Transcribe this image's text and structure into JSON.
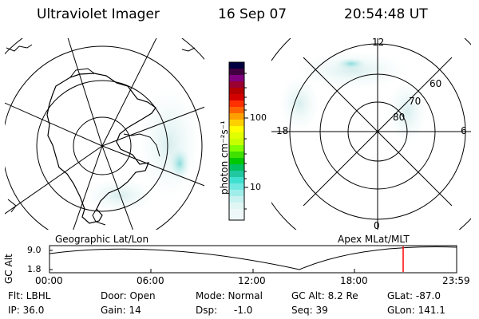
{
  "header": {
    "instrument": "Ultraviolet Imager",
    "date": "16 Sep 07",
    "time": "20:54:48 UT"
  },
  "left_panel": {
    "label": "Geographic Lat/Lon"
  },
  "right_panel": {
    "label": "Apex MLat/MLT",
    "mlt_labels": {
      "top": "12",
      "left": "18",
      "right": "6",
      "bottom": "0"
    },
    "lat_labels": [
      "60",
      "70",
      "80"
    ]
  },
  "colorbar": {
    "unit_label": "photon cm⁻²s⁻¹",
    "tick_labels": [
      "100",
      "10"
    ],
    "scale": "log",
    "colors": [
      "#e6f5f5",
      "#40e0d0",
      "#00c800",
      "#c8ff00",
      "#ffff00",
      "#ffa000",
      "#ff3000",
      "#b40000",
      "#800080",
      "#000040"
    ]
  },
  "altitude_plot": {
    "ylabel": "GC Alt",
    "yticks": [
      "9.0",
      "1.8"
    ],
    "xticks": [
      "00:00",
      "06:00",
      "12:00",
      "18:00",
      "23:59"
    ],
    "marker_color": "#ff0000"
  },
  "footer": {
    "row1": {
      "flt": "Flt: LBHL",
      "door": "Door: Open",
      "mode": "Mode: Normal",
      "gc_alt": "GC Alt: 8.2 Re",
      "glat": "GLat: -87.0"
    },
    "row2": {
      "ip": "IP: 36.0",
      "gain": "Gain: 14",
      "dsp_label": "Dsp:",
      "dsp_value": "-1.0",
      "seq": "Seq: 39",
      "glon": "GLon: 141.1"
    }
  }
}
